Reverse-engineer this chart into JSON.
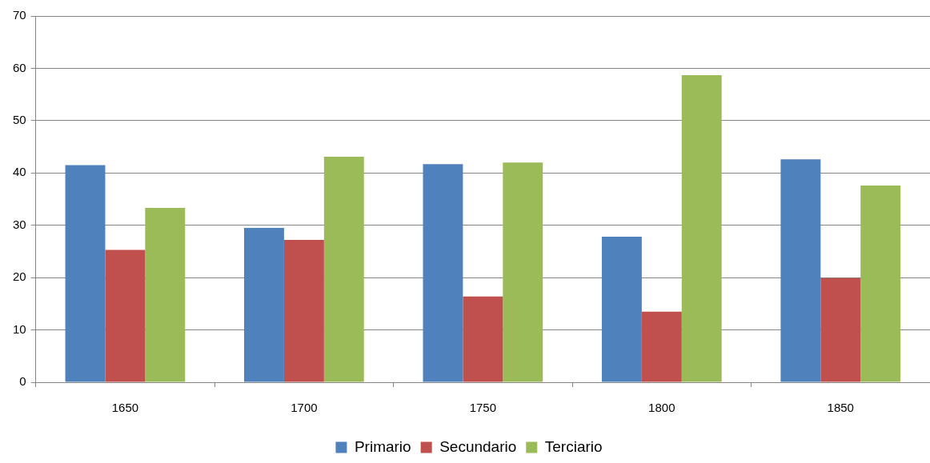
{
  "chart_data": {
    "type": "bar",
    "categories": [
      "1650",
      "1700",
      "1750",
      "1800",
      "1850"
    ],
    "series": [
      {
        "name": "Primario",
        "color": "#4f81bd",
        "values": [
          41.5,
          29.5,
          41.7,
          27.8,
          42.6
        ]
      },
      {
        "name": "Secundario",
        "color": "#c0504d",
        "values": [
          25.3,
          27.2,
          16.4,
          13.5,
          19.9
        ]
      },
      {
        "name": "Terciario",
        "color": "#9bbb59",
        "values": [
          33.3,
          43.1,
          42.0,
          58.7,
          37.6
        ]
      }
    ],
    "ylim": [
      0,
      70
    ],
    "yticks": [
      0,
      10,
      20,
      30,
      40,
      50,
      60,
      70
    ],
    "grid": "y",
    "legend": "bottom"
  }
}
